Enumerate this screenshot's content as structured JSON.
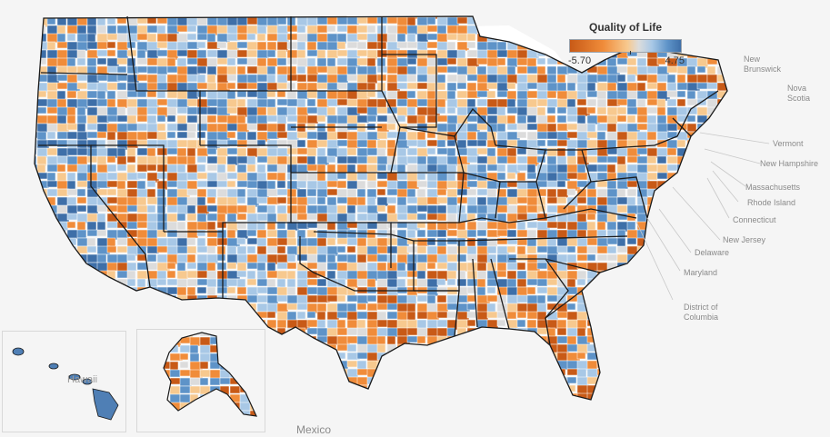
{
  "legend": {
    "title": "Quality of Life",
    "min_label": "-5.70",
    "max_label": "4.75",
    "min_value": -5.7,
    "max_value": 4.75,
    "colors": [
      "#c85a17",
      "#f08c3a",
      "#f7c98f",
      "#dcdcdc",
      "#a8c8e6",
      "#5e93c8",
      "#3e6fa8"
    ]
  },
  "state_labels": {
    "vermont": "Vermont",
    "new_hampshire": "New Hampshire",
    "massachusetts": "Massachusetts",
    "rhode_island": "Rhode Island",
    "connecticut": "Connecticut",
    "new_jersey": "New Jersey",
    "delaware": "Delaware",
    "maryland": "Maryland",
    "dc_line1": "District of",
    "dc_line2": "Columbia"
  },
  "region_labels": {
    "new_brunswick": "New\nBrunswick",
    "nova_scotia": "Nova\nScotia",
    "hawaii": "Hawaii",
    "mexico": "Mexico"
  },
  "county_fill": {
    "mean_value": 0.9,
    "note_visible": ""
  }
}
